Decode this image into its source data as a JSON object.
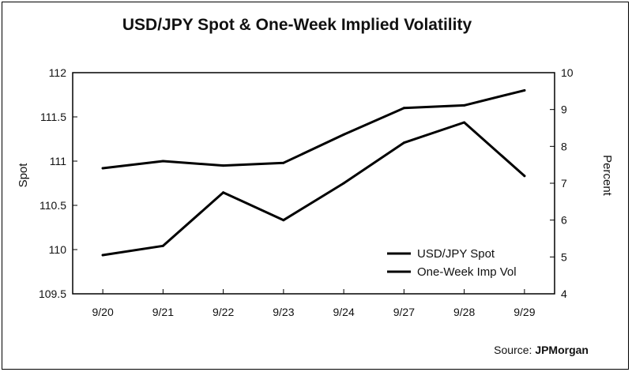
{
  "chart_data": {
    "type": "line",
    "title": "USD/JPY Spot & One-Week Implied Volatility",
    "categories": [
      "9/20",
      "9/21",
      "9/22",
      "9/23",
      "9/24",
      "9/27",
      "9/28",
      "9/29"
    ],
    "y_left": {
      "label": "Spot",
      "min": 109.5,
      "max": 112,
      "ticks": [
        "109.5",
        "110",
        "110.5",
        "111",
        "111.5",
        "112"
      ]
    },
    "y_right": {
      "label": "Percent",
      "min": 4,
      "max": 10,
      "ticks": [
        "4",
        "5",
        "6",
        "7",
        "8",
        "9",
        "10"
      ]
    },
    "series": [
      {
        "name": "USD/JPY Spot",
        "axis": "left",
        "values": [
          110.92,
          111.0,
          110.95,
          110.98,
          111.3,
          111.6,
          111.63,
          111.8
        ]
      },
      {
        "name": "One-Week Imp Vol",
        "axis": "right",
        "values": [
          5.05,
          5.3,
          6.75,
          6.0,
          7.0,
          8.1,
          8.65,
          7.2
        ]
      }
    ],
    "legend_position": "bottom-right",
    "grid": false
  },
  "source": {
    "prefix": "Source: ",
    "brand": "JPMorgan"
  }
}
